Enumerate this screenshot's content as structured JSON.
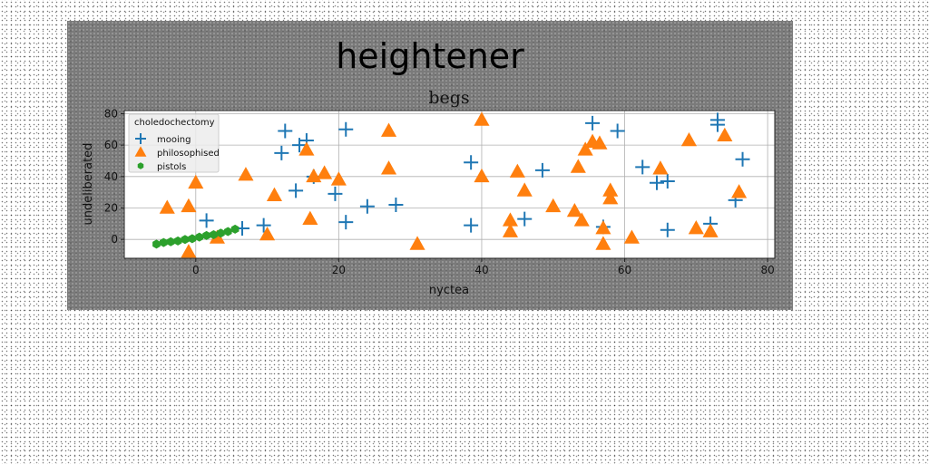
{
  "figure": {
    "suptitle": "heightener"
  },
  "chart_data": {
    "type": "scatter",
    "title": "begs",
    "xlabel": "nyctea",
    "ylabel": "undeliberated",
    "xlim": [
      -10,
      81
    ],
    "ylim": [
      -12,
      82
    ],
    "xticks": [
      0,
      20,
      40,
      60,
      80
    ],
    "yticks": [
      0,
      20,
      40,
      60,
      80
    ],
    "grid": true,
    "legend": {
      "title": "choledochectomy",
      "placement": "top-left"
    },
    "series": [
      {
        "name": "mooing",
        "marker": "plus",
        "color": "#1f77b4",
        "points": [
          [
            1.5,
            12
          ],
          [
            6.5,
            7
          ],
          [
            9.5,
            9
          ],
          [
            12,
            55
          ],
          [
            12.5,
            69
          ],
          [
            14,
            31
          ],
          [
            14.5,
            60
          ],
          [
            15.5,
            63
          ],
          [
            16.5,
            40
          ],
          [
            19.5,
            29
          ],
          [
            21,
            70
          ],
          [
            21,
            11
          ],
          [
            24,
            21
          ],
          [
            28,
            22
          ],
          [
            38.5,
            49
          ],
          [
            38.5,
            9
          ],
          [
            46,
            13
          ],
          [
            48.5,
            44
          ],
          [
            55.5,
            74
          ],
          [
            59,
            69
          ],
          [
            57,
            8
          ],
          [
            62.5,
            46
          ],
          [
            64.5,
            36
          ],
          [
            66,
            37
          ],
          [
            66,
            6
          ],
          [
            72,
            10
          ],
          [
            73,
            76
          ],
          [
            73,
            73
          ],
          [
            75.5,
            25
          ],
          [
            76.5,
            51
          ]
        ]
      },
      {
        "name": "philosophised",
        "marker": "triangle",
        "color": "#ff7f0e",
        "points": [
          [
            -4,
            20
          ],
          [
            -1,
            21
          ],
          [
            0,
            36
          ],
          [
            -1,
            -8
          ],
          [
            3,
            1
          ],
          [
            7,
            41
          ],
          [
            10,
            3
          ],
          [
            11,
            28
          ],
          [
            15.5,
            57
          ],
          [
            16,
            13
          ],
          [
            16.5,
            40
          ],
          [
            18,
            42
          ],
          [
            20,
            38
          ],
          [
            27,
            69
          ],
          [
            27,
            45
          ],
          [
            31,
            -3
          ],
          [
            40,
            76
          ],
          [
            40,
            40
          ],
          [
            44,
            12
          ],
          [
            44,
            5
          ],
          [
            45,
            43
          ],
          [
            46,
            31
          ],
          [
            50,
            21
          ],
          [
            53,
            18
          ],
          [
            53.5,
            46
          ],
          [
            54,
            12
          ],
          [
            54.5,
            57
          ],
          [
            55.5,
            62
          ],
          [
            56.5,
            61
          ],
          [
            57,
            7
          ],
          [
            57,
            -3
          ],
          [
            58,
            31
          ],
          [
            58,
            26
          ],
          [
            61,
            1
          ],
          [
            65,
            45
          ],
          [
            69,
            63
          ],
          [
            70,
            7
          ],
          [
            72,
            5
          ],
          [
            74,
            66
          ],
          [
            76,
            30
          ]
        ]
      },
      {
        "name": "pistols",
        "marker": "hexagon",
        "color": "#2ca02c",
        "points": [
          [
            -5.5,
            -3
          ],
          [
            -4.5,
            -2
          ],
          [
            -3.5,
            -1.5
          ],
          [
            -2.5,
            -1
          ],
          [
            -1.5,
            0
          ],
          [
            -0.5,
            0.5
          ],
          [
            0.5,
            1.5
          ],
          [
            1.5,
            2.5
          ],
          [
            2.5,
            3
          ],
          [
            3.5,
            4
          ],
          [
            4.5,
            5
          ],
          [
            5.5,
            6.5
          ]
        ]
      }
    ]
  }
}
